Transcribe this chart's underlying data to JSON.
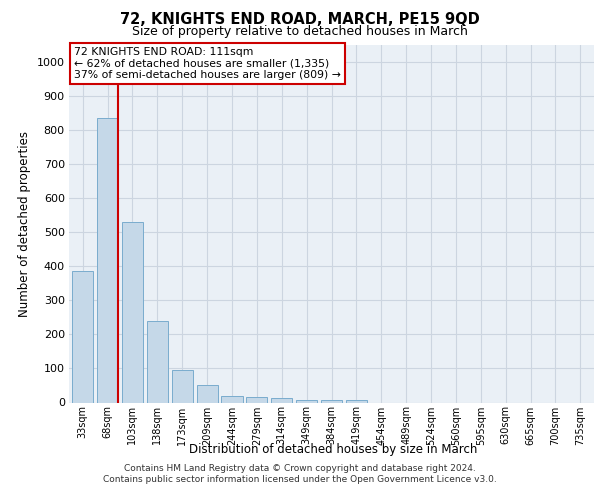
{
  "title": "72, KNIGHTS END ROAD, MARCH, PE15 9QD",
  "subtitle": "Size of property relative to detached houses in March",
  "xlabel": "Distribution of detached houses by size in March",
  "ylabel": "Number of detached properties",
  "bin_labels": [
    "33sqm",
    "68sqm",
    "103sqm",
    "138sqm",
    "173sqm",
    "209sqm",
    "244sqm",
    "279sqm",
    "314sqm",
    "349sqm",
    "384sqm",
    "419sqm",
    "454sqm",
    "489sqm",
    "524sqm",
    "560sqm",
    "595sqm",
    "630sqm",
    "665sqm",
    "700sqm",
    "735sqm"
  ],
  "bar_values": [
    385,
    835,
    530,
    240,
    95,
    50,
    20,
    15,
    12,
    8,
    8,
    7,
    0,
    0,
    0,
    0,
    0,
    0,
    0,
    0,
    0
  ],
  "bar_color": "#c5d8e8",
  "bar_edge_color": "#7aacce",
  "red_line_bar_index": 1,
  "annotation_line1": "72 KNIGHTS END ROAD: 111sqm",
  "annotation_line2": "← 62% of detached houses are smaller (1,335)",
  "annotation_line3": "37% of semi-detached houses are larger (809) →",
  "annotation_box_color": "#ffffff",
  "annotation_box_edge_color": "#cc0000",
  "ylim": [
    0,
    1050
  ],
  "yticks": [
    0,
    100,
    200,
    300,
    400,
    500,
    600,
    700,
    800,
    900,
    1000
  ],
  "grid_color": "#ccd5e0",
  "background_color": "#eaf0f6",
  "footer_line1": "Contains HM Land Registry data © Crown copyright and database right 2024.",
  "footer_line2": "Contains public sector information licensed under the Open Government Licence v3.0."
}
